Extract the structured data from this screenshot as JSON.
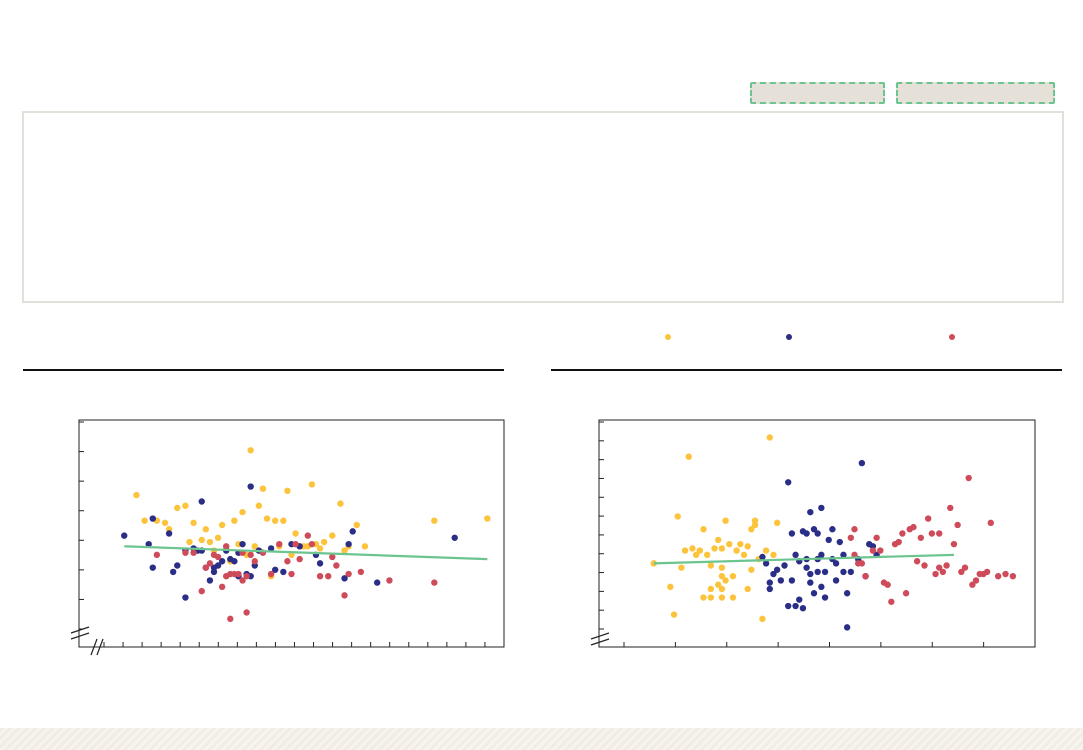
{
  "toolbar": {
    "button_a_label": "",
    "button_b_label": ""
  },
  "panel": {
    "text": ""
  },
  "colors": {
    "trend": "#6cc48f",
    "series_yellow": "#fcc43c",
    "series_navy": "#2b2e86",
    "series_red": "#ce4b5a"
  },
  "legend": [
    {
      "label": "",
      "color": "#fcc43c"
    },
    {
      "label": "",
      "color": "#2b2e86"
    },
    {
      "label": "",
      "color": "#ce4b5a"
    }
  ],
  "chart_data": [
    {
      "type": "scatter",
      "title": "",
      "xlabel": "",
      "ylabel": "",
      "xlim": [
        0,
        100
      ],
      "ylim": [
        0,
        100
      ],
      "axis_break": true,
      "grid": false,
      "x_minor_ticks": 21,
      "y_minor_ticks": 7,
      "trend": {
        "x": [
          9,
          98
        ],
        "y": [
          44,
          38
        ]
      },
      "series": [
        {
          "color": "#fcc43c",
          "points": [
            [
              12,
              68
            ],
            [
              14,
              56
            ],
            [
              17,
              56
            ],
            [
              19,
              55
            ],
            [
              20,
              52
            ],
            [
              22,
              62
            ],
            [
              24,
              63
            ],
            [
              25,
              46
            ],
            [
              26,
              55
            ],
            [
              28,
              47
            ],
            [
              29,
              52
            ],
            [
              30,
              46
            ],
            [
              31,
              42
            ],
            [
              32,
              48
            ],
            [
              33,
              54
            ],
            [
              34,
              43
            ],
            [
              35,
              37
            ],
            [
              36,
              56
            ],
            [
              37,
              45
            ],
            [
              38,
              60
            ],
            [
              39,
              40
            ],
            [
              40,
              89
            ],
            [
              41,
              44
            ],
            [
              42,
              63
            ],
            [
              43,
              71
            ],
            [
              44,
              57
            ],
            [
              45,
              30
            ],
            [
              46,
              56
            ],
            [
              47,
              44
            ],
            [
              48,
              56
            ],
            [
              49,
              70
            ],
            [
              50,
              40
            ],
            [
              51,
              50
            ],
            [
              52,
              44
            ],
            [
              53,
              44
            ],
            [
              54,
              44
            ],
            [
              55,
              73
            ],
            [
              56,
              45
            ],
            [
              57,
              43
            ],
            [
              58,
              46
            ],
            [
              60,
              49
            ],
            [
              62,
              64
            ],
            [
              63,
              42
            ],
            [
              64,
              44
            ],
            [
              66,
              54
            ],
            [
              68,
              44
            ],
            [
              85,
              56
            ],
            [
              98,
              57
            ]
          ]
        },
        {
          "color": "#2b2e86",
          "points": [
            [
              9,
              49
            ],
            [
              15,
              45
            ],
            [
              16,
              57
            ],
            [
              16,
              34
            ],
            [
              20,
              50
            ],
            [
              21,
              32
            ],
            [
              22,
              35
            ],
            [
              24,
              20
            ],
            [
              24,
              42
            ],
            [
              26,
              43
            ],
            [
              27,
              42
            ],
            [
              28,
              65
            ],
            [
              28,
              42
            ],
            [
              29,
              34
            ],
            [
              30,
              28
            ],
            [
              31,
              32
            ],
            [
              31,
              34
            ],
            [
              32,
              35
            ],
            [
              33,
              37
            ],
            [
              34,
              42
            ],
            [
              35,
              38
            ],
            [
              36,
              37
            ],
            [
              37,
              30
            ],
            [
              37,
              41
            ],
            [
              38,
              45
            ],
            [
              39,
              31
            ],
            [
              40,
              30
            ],
            [
              40,
              72
            ],
            [
              41,
              35
            ],
            [
              42,
              42
            ],
            [
              45,
              43
            ],
            [
              46,
              33
            ],
            [
              48,
              32
            ],
            [
              50,
              45
            ],
            [
              52,
              44
            ],
            [
              56,
              40
            ],
            [
              57,
              36
            ],
            [
              63,
              29
            ],
            [
              64,
              45
            ],
            [
              65,
              51
            ],
            [
              71,
              27
            ],
            [
              90,
              48
            ]
          ]
        },
        {
          "color": "#ce4b5a",
          "points": [
            [
              17,
              40
            ],
            [
              24,
              41
            ],
            [
              26,
              41
            ],
            [
              28,
              23
            ],
            [
              29,
              34
            ],
            [
              30,
              36
            ],
            [
              31,
              40
            ],
            [
              32,
              39
            ],
            [
              33,
              25
            ],
            [
              34,
              30
            ],
            [
              34,
              44
            ],
            [
              35,
              31
            ],
            [
              35,
              10
            ],
            [
              36,
              31
            ],
            [
              37,
              31
            ],
            [
              38,
              41
            ],
            [
              38,
              28
            ],
            [
              39,
              13
            ],
            [
              39,
              30
            ],
            [
              40,
              40
            ],
            [
              41,
              37
            ],
            [
              43,
              41
            ],
            [
              45,
              31
            ],
            [
              47,
              45
            ],
            [
              49,
              37
            ],
            [
              50,
              31
            ],
            [
              51,
              45
            ],
            [
              52,
              38
            ],
            [
              54,
              49
            ],
            [
              55,
              45
            ],
            [
              57,
              30
            ],
            [
              59,
              30
            ],
            [
              60,
              39
            ],
            [
              61,
              35
            ],
            [
              63,
              21
            ],
            [
              64,
              31
            ],
            [
              67,
              32
            ],
            [
              74,
              28
            ],
            [
              85,
              27
            ]
          ]
        }
      ]
    },
    {
      "type": "scatter",
      "title": "",
      "xlabel": "",
      "ylabel": "",
      "xlim": [
        0,
        100
      ],
      "ylim": [
        0,
        100
      ],
      "axis_break": true,
      "grid": false,
      "x_minor_ticks": 8,
      "y_minor_ticks": 11,
      "trend": {
        "x": [
          12.5,
          94
        ],
        "y": [
          36,
          40
        ]
      },
      "series": [
        {
          "color": "#fcc43c",
          "points": [
            [
              12.5,
              36
            ],
            [
              17,
              25
            ],
            [
              18,
              12
            ],
            [
              19,
              58
            ],
            [
              20,
              34
            ],
            [
              21,
              42
            ],
            [
              22,
              86
            ],
            [
              23,
              43
            ],
            [
              24,
              40
            ],
            [
              25,
              42
            ],
            [
              26,
              20
            ],
            [
              26,
              52
            ],
            [
              27,
              40
            ],
            [
              28,
              24
            ],
            [
              28,
              35
            ],
            [
              28,
              20
            ],
            [
              29,
              43
            ],
            [
              30,
              47
            ],
            [
              30,
              26
            ],
            [
              31,
              34
            ],
            [
              31,
              30
            ],
            [
              31,
              20
            ],
            [
              31,
              24
            ],
            [
              31,
              43
            ],
            [
              32,
              56
            ],
            [
              32,
              28
            ],
            [
              33,
              45
            ],
            [
              34,
              20
            ],
            [
              34,
              30
            ],
            [
              35,
              42
            ],
            [
              36,
              45
            ],
            [
              37,
              40
            ],
            [
              38,
              24
            ],
            [
              38,
              44
            ],
            [
              39,
              33
            ],
            [
              39,
              52
            ],
            [
              40,
              54
            ],
            [
              40,
              56
            ],
            [
              41,
              38
            ],
            [
              42,
              10
            ],
            [
              43,
              42
            ],
            [
              44,
              95
            ],
            [
              45,
              40
            ],
            [
              46,
              55
            ]
          ]
        },
        {
          "color": "#2b2e86",
          "points": [
            [
              42,
              39
            ],
            [
              43,
              36
            ],
            [
              44,
              27
            ],
            [
              44,
              24
            ],
            [
              45,
              31
            ],
            [
              46,
              33
            ],
            [
              47,
              28
            ],
            [
              48,
              35
            ],
            [
              49,
              16
            ],
            [
              49,
              74
            ],
            [
              50,
              50
            ],
            [
              50,
              28
            ],
            [
              51,
              40
            ],
            [
              51,
              16
            ],
            [
              52,
              19
            ],
            [
              52,
              37
            ],
            [
              53,
              51
            ],
            [
              53,
              15
            ],
            [
              54,
              50
            ],
            [
              54,
              34
            ],
            [
              54,
              38
            ],
            [
              55,
              31
            ],
            [
              55,
              27
            ],
            [
              55,
              60
            ],
            [
              56,
              52
            ],
            [
              56,
              22
            ],
            [
              57,
              38
            ],
            [
              57,
              32
            ],
            [
              57,
              50
            ],
            [
              58,
              62
            ],
            [
              58,
              40
            ],
            [
              58,
              25
            ],
            [
              59,
              20
            ],
            [
              59,
              32
            ],
            [
              60,
              47
            ],
            [
              61,
              38
            ],
            [
              61,
              52
            ],
            [
              62,
              28
            ],
            [
              62,
              36
            ],
            [
              63,
              46
            ],
            [
              64,
              32
            ],
            [
              64,
              40
            ],
            [
              65,
              6
            ],
            [
              65,
              22
            ],
            [
              66,
              32
            ],
            [
              68,
              38
            ],
            [
              69,
              83
            ],
            [
              70,
              30
            ],
            [
              71,
              45
            ],
            [
              72,
              44
            ],
            [
              73,
              40
            ]
          ]
        },
        {
          "color": "#ce4b5a",
          "points": [
            [
              66,
              48
            ],
            [
              67,
              40
            ],
            [
              67,
              52
            ],
            [
              68,
              36
            ],
            [
              69,
              36
            ],
            [
              70,
              30
            ],
            [
              72,
              42
            ],
            [
              73,
              48
            ],
            [
              74,
              42
            ],
            [
              75,
              27
            ],
            [
              76,
              26
            ],
            [
              77,
              18
            ],
            [
              78,
              45
            ],
            [
              79,
              46
            ],
            [
              80,
              50
            ],
            [
              81,
              22
            ],
            [
              82,
              52
            ],
            [
              83,
              53
            ],
            [
              84,
              37
            ],
            [
              85,
              48
            ],
            [
              86,
              35
            ],
            [
              87,
              57
            ],
            [
              88,
              50
            ],
            [
              89,
              31
            ],
            [
              90,
              50
            ],
            [
              90,
              34
            ],
            [
              91,
              32
            ],
            [
              92,
              35
            ],
            [
              93,
              62
            ],
            [
              94,
              45
            ],
            [
              95,
              54
            ],
            [
              96,
              32
            ],
            [
              97,
              34
            ],
            [
              98,
              76
            ],
            [
              99,
              26
            ],
            [
              100,
              28
            ],
            [
              101,
              31
            ],
            [
              102,
              31
            ],
            [
              103,
              32
            ],
            [
              104,
              55
            ],
            [
              106,
              30
            ],
            [
              108,
              31
            ],
            [
              110,
              30
            ]
          ]
        }
      ]
    }
  ]
}
